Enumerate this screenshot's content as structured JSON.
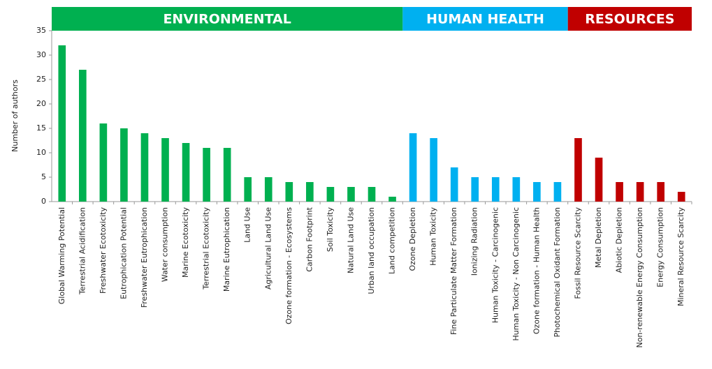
{
  "chart_data": {
    "type": "bar",
    "ylabel": "Number of authors",
    "ylim": [
      0,
      35
    ],
    "yticks": [
      0,
      5,
      10,
      15,
      20,
      25,
      30,
      35
    ],
    "groups": [
      {
        "name": "ENVIRONMENTAL",
        "color": "#00b050",
        "categories": [
          "Global Warming Potential",
          "Terrestrial Acidification",
          "Freshwater Ecotoxicity",
          "Eutrophication Potential",
          "Freshwater Eutrophication",
          "Water consumption",
          "Marine Ecotoxicity",
          "Terrestrial Ecotoxicity",
          "Marine Eutrophication",
          "Land Use",
          "Agricultural Land Use",
          "Ozone formation - Ecosystems",
          "Carbon Footprint",
          "Soil Toxicity",
          "Natural Land Use",
          "Urban land occupation",
          "Land competition"
        ],
        "values": [
          32,
          27,
          16,
          15,
          14,
          13,
          12,
          11,
          11,
          5,
          5,
          4,
          4,
          3,
          3,
          3,
          1
        ]
      },
      {
        "name": "HUMAN HEALTH",
        "color": "#00b0f0",
        "categories": [
          "Ozone Depletion",
          "Human Toxicity",
          "Fine Particulate Matter Formation",
          "Ionizing Radiation",
          "Human Toxicity - Carcinogenic",
          "Human Toxicity - Non Carcinogenic",
          "Ozone formation - Human Health",
          "Photochemical Oxidant Formation"
        ],
        "values": [
          14,
          13,
          7,
          5,
          5,
          5,
          4,
          4
        ]
      },
      {
        "name": "RESOURCES",
        "color": "#c00000",
        "categories": [
          "Fossil Resource Scarcity",
          "Metal Depletion",
          "Abiotic Depletion",
          "Non-renewable Energy Consumption",
          "Energy Consumption",
          "Mineral Resource Scarcity"
        ],
        "values": [
          13,
          9,
          4,
          4,
          4,
          2
        ]
      }
    ]
  }
}
